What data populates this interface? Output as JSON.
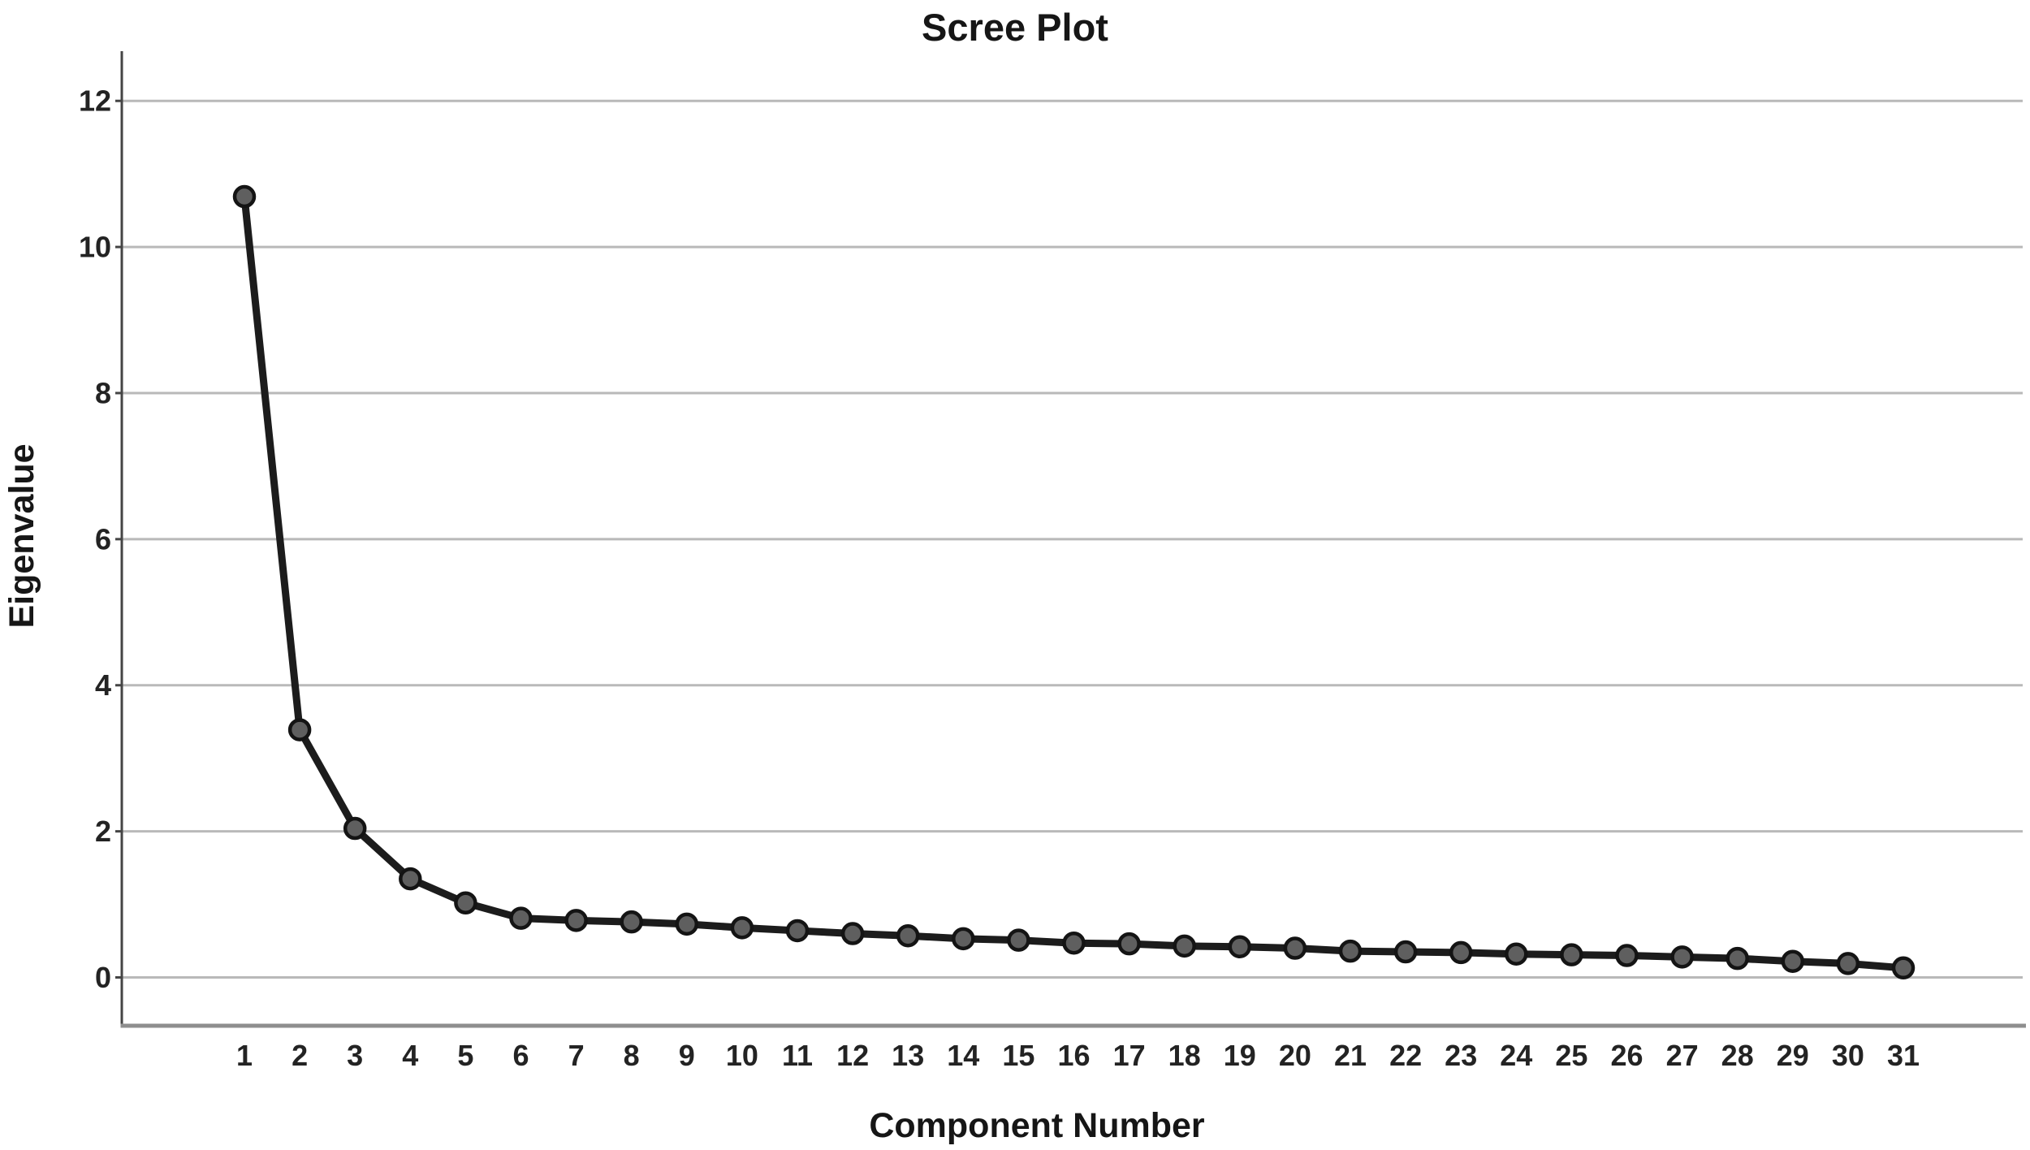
{
  "chart": {
    "title": "Scree Plot",
    "xlabel": "Component Number",
    "ylabel": "Eigenvalue"
  },
  "chart_data": {
    "type": "line",
    "title": "Scree Plot",
    "xlabel": "Component Number",
    "ylabel": "Eigenvalue",
    "x": [
      1,
      2,
      3,
      4,
      5,
      6,
      7,
      8,
      9,
      10,
      11,
      12,
      13,
      14,
      15,
      16,
      17,
      18,
      19,
      20,
      21,
      22,
      23,
      24,
      25,
      26,
      27,
      28,
      29,
      30,
      31
    ],
    "values": [
      10.69,
      3.39,
      2.04,
      1.35,
      1.02,
      0.81,
      0.78,
      0.76,
      0.73,
      0.68,
      0.64,
      0.6,
      0.57,
      0.53,
      0.51,
      0.47,
      0.46,
      0.43,
      0.42,
      0.4,
      0.36,
      0.35,
      0.34,
      0.32,
      0.31,
      0.3,
      0.28,
      0.26,
      0.22,
      0.19,
      0.13
    ],
    "x_tick_labels": [
      "1",
      "2",
      "3",
      "4",
      "5",
      "6",
      "7",
      "8",
      "9",
      "10",
      "11",
      "12",
      "13",
      "14",
      "15",
      "16",
      "17",
      "18",
      "19",
      "20",
      "21",
      "22",
      "23",
      "24",
      "25",
      "26",
      "27",
      "28",
      "29",
      "30",
      "31"
    ],
    "y_ticks": [
      0,
      2,
      4,
      6,
      8,
      10,
      12
    ],
    "ylim": [
      -0.68,
      12.7
    ],
    "grid": "horizontal-only",
    "legend": "none",
    "marker": "filled-circle",
    "colors": {
      "background": "#ffffff",
      "line": "#1c1c1c",
      "marker_fill": "#5f5f5f",
      "marker_stroke": "#141414",
      "gridline": "#b9b9b9",
      "y_axis": "#454545",
      "x_axis": "#8e8e8e",
      "text": "#232323",
      "title_text": "#161616"
    }
  }
}
